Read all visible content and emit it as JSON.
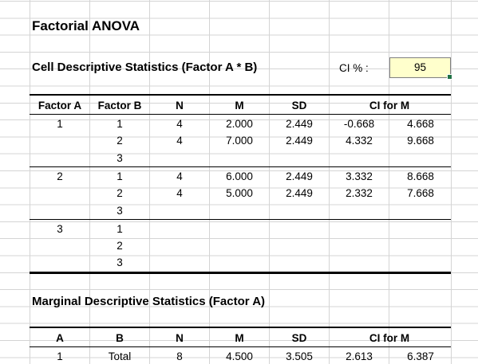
{
  "title": "Factorial ANOVA",
  "cell_section": {
    "heading": "Cell Descriptive Statistics (Factor A * B)",
    "ci_label": "CI % :",
    "ci_value": "95",
    "headers": {
      "factor_a": "Factor A",
      "factor_b": "Factor B",
      "n": "N",
      "m": "M",
      "sd": "SD",
      "ci": "CI for M"
    },
    "groups": [
      {
        "a": "1",
        "rows": [
          {
            "b": "1",
            "n": "4",
            "m": "2.000",
            "sd": "2.449",
            "lo": "-0.668",
            "hi": "4.668"
          },
          {
            "b": "2",
            "n": "4",
            "m": "7.000",
            "sd": "2.449",
            "lo": "4.332",
            "hi": "9.668"
          },
          {
            "b": "3",
            "n": "",
            "m": "",
            "sd": "",
            "lo": "",
            "hi": ""
          }
        ]
      },
      {
        "a": "2",
        "rows": [
          {
            "b": "1",
            "n": "4",
            "m": "6.000",
            "sd": "2.449",
            "lo": "3.332",
            "hi": "8.668"
          },
          {
            "b": "2",
            "n": "4",
            "m": "5.000",
            "sd": "2.449",
            "lo": "2.332",
            "hi": "7.668"
          },
          {
            "b": "3",
            "n": "",
            "m": "",
            "sd": "",
            "lo": "",
            "hi": ""
          }
        ]
      },
      {
        "a": "3",
        "rows": [
          {
            "b": "1",
            "n": "",
            "m": "",
            "sd": "",
            "lo": "",
            "hi": ""
          },
          {
            "b": "2",
            "n": "",
            "m": "",
            "sd": "",
            "lo": "",
            "hi": ""
          },
          {
            "b": "3",
            "n": "",
            "m": "",
            "sd": "",
            "lo": "",
            "hi": ""
          }
        ]
      }
    ]
  },
  "marginal_section": {
    "heading": "Marginal Descriptive Statistics (Factor A)",
    "headers": {
      "a": "A",
      "b": "B",
      "n": "N",
      "m": "M",
      "sd": "SD",
      "ci": "CI for M"
    },
    "rows": [
      {
        "a": "1",
        "b": "Total",
        "n": "8",
        "m": "4.500",
        "sd": "3.505",
        "lo": "2.613",
        "hi": "6.387"
      }
    ]
  }
}
